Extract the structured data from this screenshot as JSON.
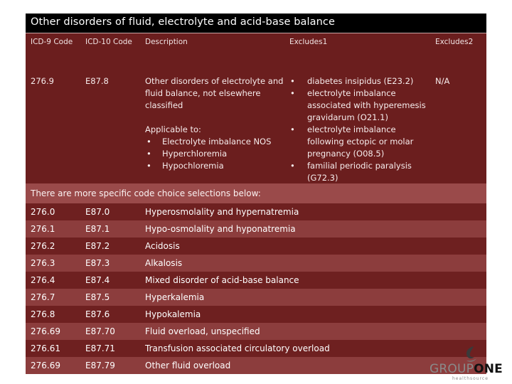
{
  "title": "Other disorders of fluid, electrolyte and acid-base balance",
  "headers": [
    "ICD-9 Code",
    "ICD-10 Code",
    "Description",
    "Excludes1",
    "Excludes2"
  ],
  "main_row": {
    "icd9": "276.9",
    "icd10": "E87.8",
    "description": "Other disorders of electrolyte and fluid balance, not elsewhere classified",
    "applicable_label": "Applicable to:",
    "applicable_items": [
      "Electrolyte imbalance NOS",
      "Hyperchloremia",
      "Hypochloremia"
    ],
    "excludes1": [
      "diabetes insipidus (E23.2)",
      "electrolyte imbalance associated with hyperemesis gravidarum (O21.1)",
      "electrolyte imbalance following ectopic or molar pregnancy (O08.5)",
      "familial periodic paralysis (G72.3)"
    ],
    "excludes2": "N/A"
  },
  "note": "There are more specific code choice selections below:",
  "rows": [
    {
      "icd9": "276.0",
      "icd10": "E87.0",
      "description": "Hyperosmolality and hypernatremia"
    },
    {
      "icd9": "276.1",
      "icd10": "E87.1",
      "description": "Hypo-osmolality and hyponatremia"
    },
    {
      "icd9": "276.2",
      "icd10": "E87.2",
      "description": "Acidosis"
    },
    {
      "icd9": "276.3",
      "icd10": "E87.3",
      "description": "Alkalosis"
    },
    {
      "icd9": "276.4",
      "icd10": "E87.4",
      "description": "Mixed disorder of acid-base balance"
    },
    {
      "icd9": "276.7",
      "icd10": "E87.5",
      "description": "Hyperkalemia"
    },
    {
      "icd9": "276.8",
      "icd10": "E87.6",
      "description": "Hypokalemia"
    },
    {
      "icd9": "276.69",
      "icd10": "E87.70",
      "description": "Fluid overload, unspecified"
    },
    {
      "icd9": "276.61",
      "icd10": "E87.71",
      "description": "Transfusion associated circulatory overload"
    },
    {
      "icd9": "276.69",
      "icd10": "E87.79",
      "description": "Other fluid overload"
    }
  ],
  "logo": {
    "group": "GROUP",
    "one": "ONE",
    "tagline": "healthsource"
  },
  "colors": {
    "title_bg": "#000000",
    "row_dark": "#6e2020",
    "row_light": "#8c3d3d",
    "note_bg": "#9a4a4a"
  }
}
